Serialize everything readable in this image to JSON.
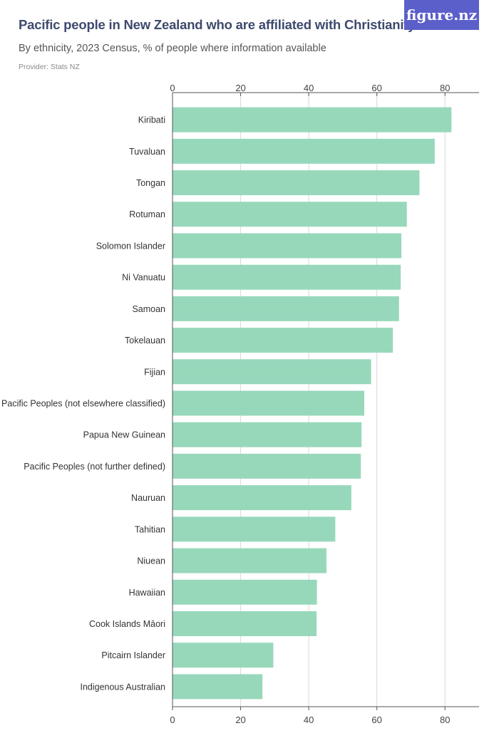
{
  "header": {
    "title": "Pacific people in New Zealand who are affiliated with Christianity",
    "subtitle": "By ethnicity, 2023 Census, % of people where information available",
    "provider": "Provider: Stats NZ",
    "logo_text": "figure.nz"
  },
  "colors": {
    "bar": "#97d8bb",
    "logo_bg": "#5b5fc9",
    "title": "#3e4a6e",
    "grid": "#d9d9d9",
    "axis": "#555555"
  },
  "chart_data": {
    "type": "bar",
    "orientation": "horizontal",
    "categories": [
      "Kiribati",
      "Tuvaluan",
      "Tongan",
      "Rotuman",
      "Solomon Islander",
      "Ni Vanuatu",
      "Samoan",
      "Tokelauan",
      "Fijian",
      "Pacific Peoples (not elsewhere classified)",
      "Papua New Guinean",
      "Pacific Peoples (not further defined)",
      "Nauruan",
      "Tahitian",
      "Niuean",
      "Hawaiian",
      "Cook Islands Māori",
      "Pitcairn Islander",
      "Indigenous Australian"
    ],
    "values": [
      81.9,
      77.0,
      72.5,
      68.8,
      67.2,
      67.0,
      66.5,
      64.7,
      58.3,
      56.3,
      55.5,
      55.3,
      52.5,
      47.8,
      45.2,
      42.4,
      42.3,
      29.6,
      26.4
    ],
    "xlim": [
      0,
      90
    ],
    "xticks": [
      "0",
      "20",
      "40",
      "60",
      "80"
    ],
    "grid": true,
    "axis_position": "top-and-bottom",
    "legend": "none"
  }
}
